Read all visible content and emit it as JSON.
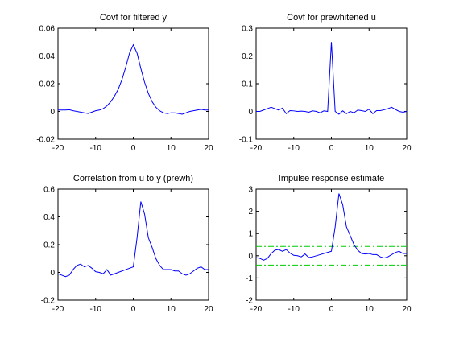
{
  "figure": {
    "background": "#ffffff",
    "axes_color": "#000000",
    "line_color": "#0000ff",
    "confidence_color": "#00cc00"
  },
  "chart_data": [
    {
      "type": "line",
      "title": "Covf for filtered y",
      "xlim": [
        -20,
        20
      ],
      "ylim": [
        -0.02,
        0.06
      ],
      "xticks": [
        -20,
        -10,
        0,
        10,
        20
      ],
      "yticks": [
        -0.02,
        0,
        0.02,
        0.04,
        0.06
      ],
      "ytick_labels": [
        "-0.02",
        "0",
        "0.02",
        "0.04",
        "0.06"
      ],
      "series": [
        {
          "x": [
            -20,
            -19,
            -18,
            -17,
            -16,
            -15,
            -14,
            -13,
            -12,
            -11,
            -10,
            -9,
            -8,
            -7,
            -6,
            -5,
            -4,
            -3,
            -2,
            -1,
            0,
            1,
            2,
            3,
            4,
            5,
            6,
            7,
            8,
            9,
            10,
            11,
            12,
            13,
            14,
            15,
            16,
            17,
            18,
            19,
            20
          ],
          "y": [
            0.001,
            0.001,
            0.001,
            0.0012,
            0.0005,
            0.0,
            -0.0005,
            -0.001,
            -0.0015,
            -0.0005,
            0.0005,
            0.001,
            0.002,
            0.004,
            0.007,
            0.011,
            0.016,
            0.023,
            0.032,
            0.042,
            0.048,
            0.042,
            0.031,
            0.021,
            0.013,
            0.007,
            0.003,
            0.0005,
            -0.001,
            -0.0015,
            -0.001,
            -0.001,
            -0.0015,
            -0.002,
            -0.001,
            0.0,
            0.0005,
            0.001,
            0.0015,
            0.001,
            0.001
          ]
        }
      ]
    },
    {
      "type": "line",
      "title": "Covf for prewhitened u",
      "xlim": [
        -20,
        20
      ],
      "ylim": [
        -0.1,
        0.3
      ],
      "xticks": [
        -20,
        -10,
        0,
        10,
        20
      ],
      "yticks": [
        -0.1,
        0,
        0.1,
        0.2,
        0.3
      ],
      "ytick_labels": [
        "-0.1",
        "0",
        "0.1",
        "0.2",
        "0.3"
      ],
      "series": [
        {
          "x": [
            -20,
            -19,
            -18,
            -17,
            -16,
            -15,
            -14,
            -13,
            -12,
            -11,
            -10,
            -9,
            -8,
            -7,
            -6,
            -5,
            -4,
            -3,
            -2,
            -1,
            0,
            1,
            2,
            3,
            4,
            5,
            6,
            7,
            8,
            9,
            10,
            11,
            12,
            13,
            14,
            15,
            16,
            17,
            18,
            19,
            20
          ],
          "y": [
            0.0,
            0.0,
            0.005,
            0.01,
            0.015,
            0.01,
            0.005,
            0.012,
            -0.008,
            0.003,
            0.002,
            0.0,
            0.001,
            0.0,
            -0.003,
            0.002,
            0.0,
            -0.005,
            0.002,
            0.0,
            0.25,
            0.0,
            -0.01,
            0.002,
            -0.008,
            0.0,
            -0.005,
            0.005,
            0.003,
            0.0,
            0.008,
            -0.008,
            0.003,
            0.003,
            0.006,
            0.01,
            0.015,
            0.007,
            0.0,
            -0.003,
            0.0
          ]
        }
      ]
    },
    {
      "type": "line",
      "title": "Correlation from u to y (prewh)",
      "xlim": [
        -20,
        20
      ],
      "ylim": [
        -0.2,
        0.6
      ],
      "xticks": [
        -20,
        -10,
        0,
        10,
        20
      ],
      "yticks": [
        -0.2,
        0,
        0.2,
        0.4,
        0.6
      ],
      "ytick_labels": [
        "-0.2",
        "0",
        "0.2",
        "0.4",
        "0.6"
      ],
      "series": [
        {
          "x": [
            -20,
            -19,
            -18,
            -17,
            -16,
            -15,
            -14,
            -13,
            -12,
            -11,
            -10,
            -9,
            -8,
            -7,
            -6,
            -5,
            -4,
            -3,
            -2,
            -1,
            0,
            1,
            2,
            3,
            4,
            5,
            6,
            7,
            8,
            9,
            10,
            11,
            12,
            13,
            14,
            15,
            16,
            17,
            18,
            19,
            20
          ],
          "y": [
            -0.01,
            -0.02,
            -0.03,
            -0.02,
            0.02,
            0.05,
            0.06,
            0.04,
            0.05,
            0.03,
            0.005,
            0.0,
            -0.01,
            0.02,
            -0.02,
            -0.01,
            0.0,
            0.01,
            0.02,
            0.03,
            0.04,
            0.25,
            0.51,
            0.42,
            0.25,
            0.18,
            0.1,
            0.05,
            0.02,
            0.02,
            0.02,
            0.01,
            0.01,
            -0.01,
            -0.02,
            -0.01,
            0.01,
            0.03,
            0.04,
            0.02,
            0.02
          ]
        }
      ]
    },
    {
      "type": "line",
      "title": "Impulse response estimate",
      "xlim": [
        -20,
        20
      ],
      "ylim": [
        -2,
        3
      ],
      "xticks": [
        -20,
        -10,
        0,
        10,
        20
      ],
      "yticks": [
        -2,
        -1,
        0,
        1,
        2,
        3
      ],
      "ytick_labels": [
        "-2",
        "-1",
        "0",
        "1",
        "2",
        "3"
      ],
      "confidence_band": [
        -0.42,
        0.42
      ],
      "series": [
        {
          "x": [
            -20,
            -19,
            -18,
            -17,
            -16,
            -15,
            -14,
            -13,
            -12,
            -11,
            -10,
            -9,
            -8,
            -7,
            -6,
            -5,
            -4,
            -3,
            -2,
            -1,
            0,
            1,
            2,
            3,
            4,
            5,
            6,
            7,
            8,
            9,
            10,
            11,
            12,
            13,
            14,
            15,
            16,
            17,
            18,
            19,
            20
          ],
          "y": [
            -0.08,
            -0.12,
            -0.2,
            -0.12,
            0.1,
            0.25,
            0.28,
            0.2,
            0.28,
            0.12,
            0.02,
            0.0,
            -0.05,
            0.08,
            -0.08,
            -0.05,
            0.0,
            0.05,
            0.1,
            0.15,
            0.2,
            1.3,
            2.8,
            2.3,
            1.3,
            0.9,
            0.5,
            0.25,
            0.1,
            0.08,
            0.1,
            0.05,
            0.05,
            -0.05,
            -0.1,
            -0.05,
            0.05,
            0.15,
            0.2,
            0.1,
            0.1
          ]
        }
      ]
    }
  ]
}
